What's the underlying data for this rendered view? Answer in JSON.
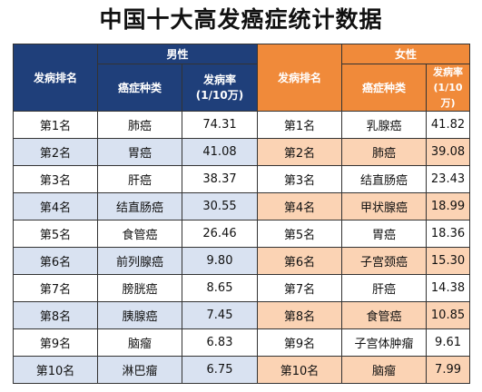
{
  "title": "中国十大高发癌症统计数据",
  "headers": {
    "rank": "发病排名",
    "male": "男性",
    "female": "女性",
    "cancer_type": "癌症种类",
    "rate_line1": "发病率",
    "rate_line2": "(1/10万)"
  },
  "rows": [
    {
      "rank": "第1名",
      "male_type": "肺癌",
      "male_rate": "74.31",
      "female_rank": "第1名",
      "female_type": "乳腺癌",
      "female_rate": "41.82"
    },
    {
      "rank": "第2名",
      "male_type": "胃癌",
      "male_rate": "41.08",
      "female_rank": "第2名",
      "female_type": "肺癌",
      "female_rate": "39.08"
    },
    {
      "rank": "第3名",
      "male_type": "肝癌",
      "male_rate": "38.37",
      "female_rank": "第3名",
      "female_type": "结直肠癌",
      "female_rate": "23.43"
    },
    {
      "rank": "第4名",
      "male_type": "结直肠癌",
      "male_rate": "30.55",
      "female_rank": "第4名",
      "female_type": "甲状腺癌",
      "female_rate": "18.99"
    },
    {
      "rank": "第5名",
      "male_type": "食管癌",
      "male_rate": "26.46",
      "female_rank": "第5名",
      "female_type": "胃癌",
      "female_rate": "18.36"
    },
    {
      "rank": "第6名",
      "male_type": "前列腺癌",
      "male_rate": "9.80",
      "female_rank": "第6名",
      "female_type": "子宫颈癌",
      "female_rate": "15.30"
    },
    {
      "rank": "第7名",
      "male_type": "膀胱癌",
      "male_rate": "8.65",
      "female_rank": "第7名",
      "female_type": "肝癌",
      "female_rate": "14.38"
    },
    {
      "rank": "第8名",
      "male_type": "胰腺癌",
      "male_rate": "7.45",
      "female_rank": "第8名",
      "female_type": "食管癌",
      "female_rate": "10.85"
    },
    {
      "rank": "第9名",
      "male_type": "脑瘤",
      "male_rate": "6.83",
      "female_rank": "第9名",
      "female_type": "子宫体肿瘤",
      "female_rate": "9.61"
    },
    {
      "rank": "第10名",
      "male_type": "淋巴瘤",
      "male_rate": "6.75",
      "female_rank": "第10名",
      "female_type": "脑瘤",
      "female_rate": "7.99"
    }
  ],
  "colors": {
    "male_header": "#1f3f7a",
    "female_header": "#f08a3a",
    "male_alt_row": "#d9e2f1",
    "female_alt_row": "#fbd3b4"
  }
}
